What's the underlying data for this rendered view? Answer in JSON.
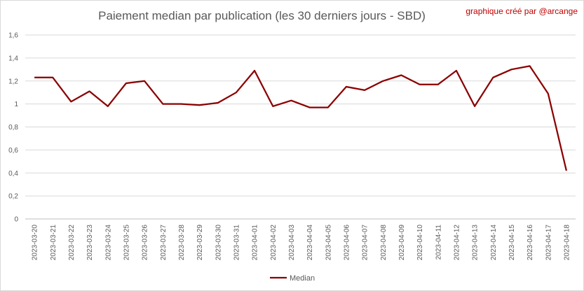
{
  "chart_data": {
    "type": "line",
    "title": "Paiement median par publication (les 30 derniers jours - SBD)",
    "credit": "graphique créé par @arcange",
    "categories": [
      "2023-03-20",
      "2023-03-21",
      "2023-03-22",
      "2023-03-23",
      "2023-03-24",
      "2023-03-25",
      "2023-03-26",
      "2023-03-27",
      "2023-03-28",
      "2023-03-29",
      "2023-03-30",
      "2023-03-31",
      "2023-04-01",
      "2023-04-02",
      "2023-04-03",
      "2023-04-04",
      "2023-04-05",
      "2023-04-06",
      "2023-04-07",
      "2023-04-08",
      "2023-04-09",
      "2023-04-10",
      "2023-04-11",
      "2023-04-12",
      "2023-04-13",
      "2023-04-14",
      "2023-04-15",
      "2023-04-16",
      "2023-04-17",
      "2023-04-18"
    ],
    "series": [
      {
        "name": "Median",
        "color": "#8b0000",
        "values": [
          1.23,
          1.23,
          1.02,
          1.11,
          0.98,
          1.18,
          1.2,
          1.0,
          1.0,
          0.99,
          1.01,
          1.1,
          1.29,
          0.98,
          1.03,
          0.97,
          0.97,
          1.15,
          1.12,
          1.2,
          1.25,
          1.17,
          1.17,
          1.29,
          0.98,
          1.23,
          1.3,
          1.33,
          1.09,
          0.42
        ]
      }
    ],
    "ylim": [
      0,
      1.6
    ],
    "yticks": [
      "0",
      "0,2",
      "0,4",
      "0,6",
      "0,8",
      "1",
      "1,2",
      "1,4",
      "1,6"
    ],
    "grid": true,
    "legend": "bottom"
  }
}
